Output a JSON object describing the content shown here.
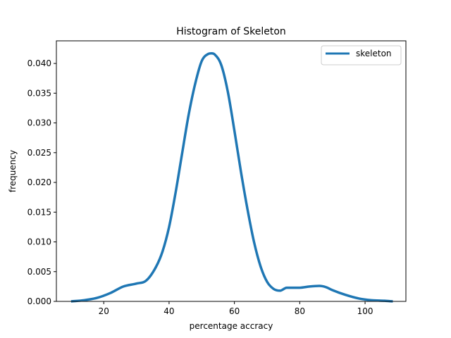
{
  "chart_data": {
    "type": "line",
    "title": "Histogram of Skeleton",
    "xlabel": "percentage accracy",
    "ylabel": "frequency",
    "xlim": [
      5.5,
      112.5
    ],
    "ylim": [
      0,
      0.0438
    ],
    "xticks": [
      20,
      40,
      60,
      80,
      100
    ],
    "xtick_labels": [
      "20",
      "40",
      "60",
      "80",
      "100"
    ],
    "yticks": [
      0,
      0.005,
      0.01,
      0.015,
      0.02,
      0.025,
      0.03,
      0.035,
      0.04
    ],
    "ytick_labels": [
      "0.000",
      "0.005",
      "0.010",
      "0.015",
      "0.020",
      "0.025",
      "0.030",
      "0.035",
      "0.040"
    ],
    "grid": false,
    "legend_position": "top-right",
    "series": [
      {
        "name": "skeleton",
        "color": "#1f77b4",
        "x": [
          10,
          14,
          18,
          22,
          26,
          30,
          33,
          36,
          38,
          40,
          42,
          44,
          46,
          48,
          50,
          52,
          53,
          54,
          56,
          58,
          60,
          62,
          64,
          66,
          68,
          70,
          72,
          74,
          76,
          78,
          80,
          83,
          86,
          88,
          90,
          94,
          98,
          102,
          106,
          108.5
        ],
        "y": [
          0.0,
          0.0002,
          0.0006,
          0.0014,
          0.0025,
          0.003,
          0.0035,
          0.0058,
          0.0084,
          0.0125,
          0.0183,
          0.0249,
          0.0314,
          0.0366,
          0.0404,
          0.0416,
          0.0417,
          0.0415,
          0.0397,
          0.0352,
          0.0287,
          0.0218,
          0.0155,
          0.01,
          0.0059,
          0.0033,
          0.0021,
          0.0018,
          0.0023,
          0.0023,
          0.0023,
          0.0025,
          0.0026,
          0.0024,
          0.0019,
          0.0011,
          0.0005,
          0.0002,
          0.0001,
          0.0
        ]
      }
    ]
  }
}
